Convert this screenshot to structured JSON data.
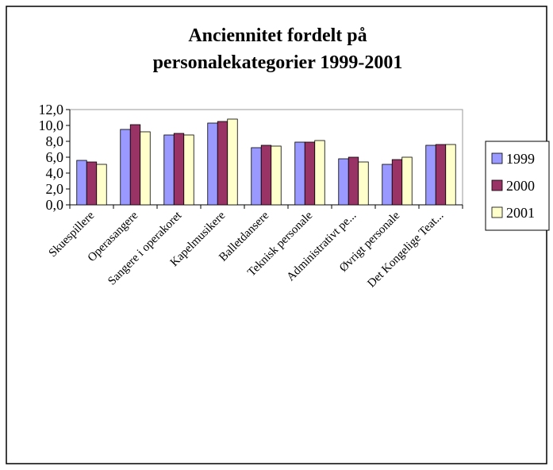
{
  "chart_data": {
    "type": "bar",
    "title": "Anciennitet fordelt på personalekategorier 1999-2001",
    "categories": [
      "Skuespillere",
      "Operasangere",
      "Sangere i operakoret",
      "Kapelmusikere",
      "Balletdansere",
      "Teknisk personale",
      "Administrativt pe...",
      "Øvrigt personale",
      "Det Kongelige Teat..."
    ],
    "series": [
      {
        "name": "1999",
        "color": "#9999ff",
        "values": [
          5.6,
          9.5,
          8.8,
          10.3,
          7.2,
          7.9,
          5.8,
          5.1,
          7.5
        ]
      },
      {
        "name": "2000",
        "color": "#993366",
        "values": [
          5.4,
          10.1,
          9.0,
          10.5,
          7.5,
          7.9,
          6.0,
          5.7,
          7.6
        ]
      },
      {
        "name": "2001",
        "color": "#ffffcc",
        "values": [
          5.1,
          9.2,
          8.8,
          10.8,
          7.4,
          8.1,
          5.4,
          6.0,
          7.6
        ]
      }
    ],
    "ylim": [
      0,
      12
    ],
    "yticks": [
      {
        "value": 0,
        "label": "0,0"
      },
      {
        "value": 2,
        "label": "2,0"
      },
      {
        "value": 4,
        "label": "4,0"
      },
      {
        "value": 6,
        "label": "6,0"
      },
      {
        "value": 8,
        "label": "8,0"
      },
      {
        "value": 10,
        "label": "10,0"
      },
      {
        "value": 12,
        "label": "12,0"
      }
    ],
    "legend": "right"
  }
}
